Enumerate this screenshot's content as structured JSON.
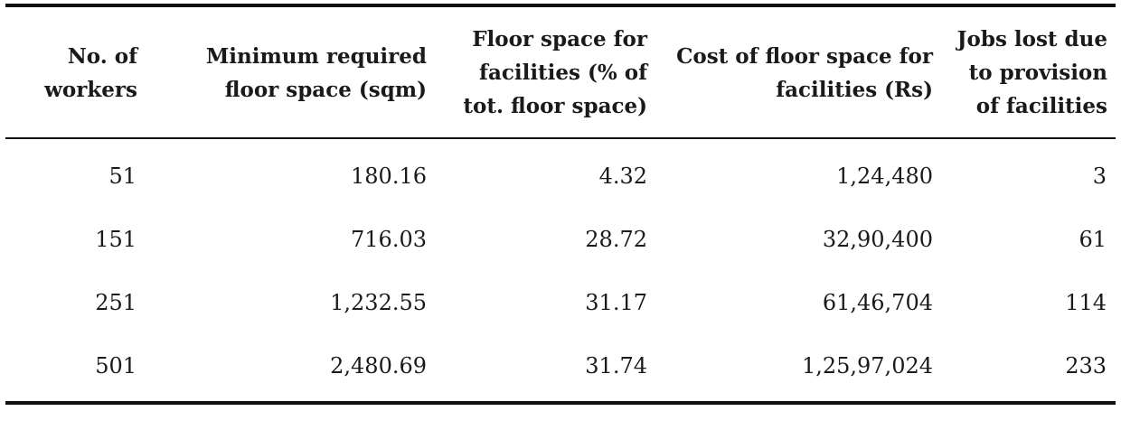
{
  "table": {
    "headers": [
      [
        "No. of",
        "workers"
      ],
      [
        "Minimum required",
        "floor space (sqm)"
      ],
      [
        "Floor space for",
        "facilities (% of",
        "tot. floor space)"
      ],
      [
        "Cost of floor space for",
        "facilities (Rs)"
      ],
      [
        "Jobs lost due",
        "to provision",
        "of facilities"
      ]
    ],
    "rows": [
      [
        "51",
        "180.16",
        "4.32",
        "1,24,480",
        "3"
      ],
      [
        "151",
        "716.03",
        "28.72",
        "32,90,400",
        "61"
      ],
      [
        "251",
        "1,232.55",
        "31.17",
        "61,46,704",
        "114"
      ],
      [
        "501",
        "2,480.69",
        "31.74",
        "1,25,97,024",
        "233"
      ]
    ]
  }
}
